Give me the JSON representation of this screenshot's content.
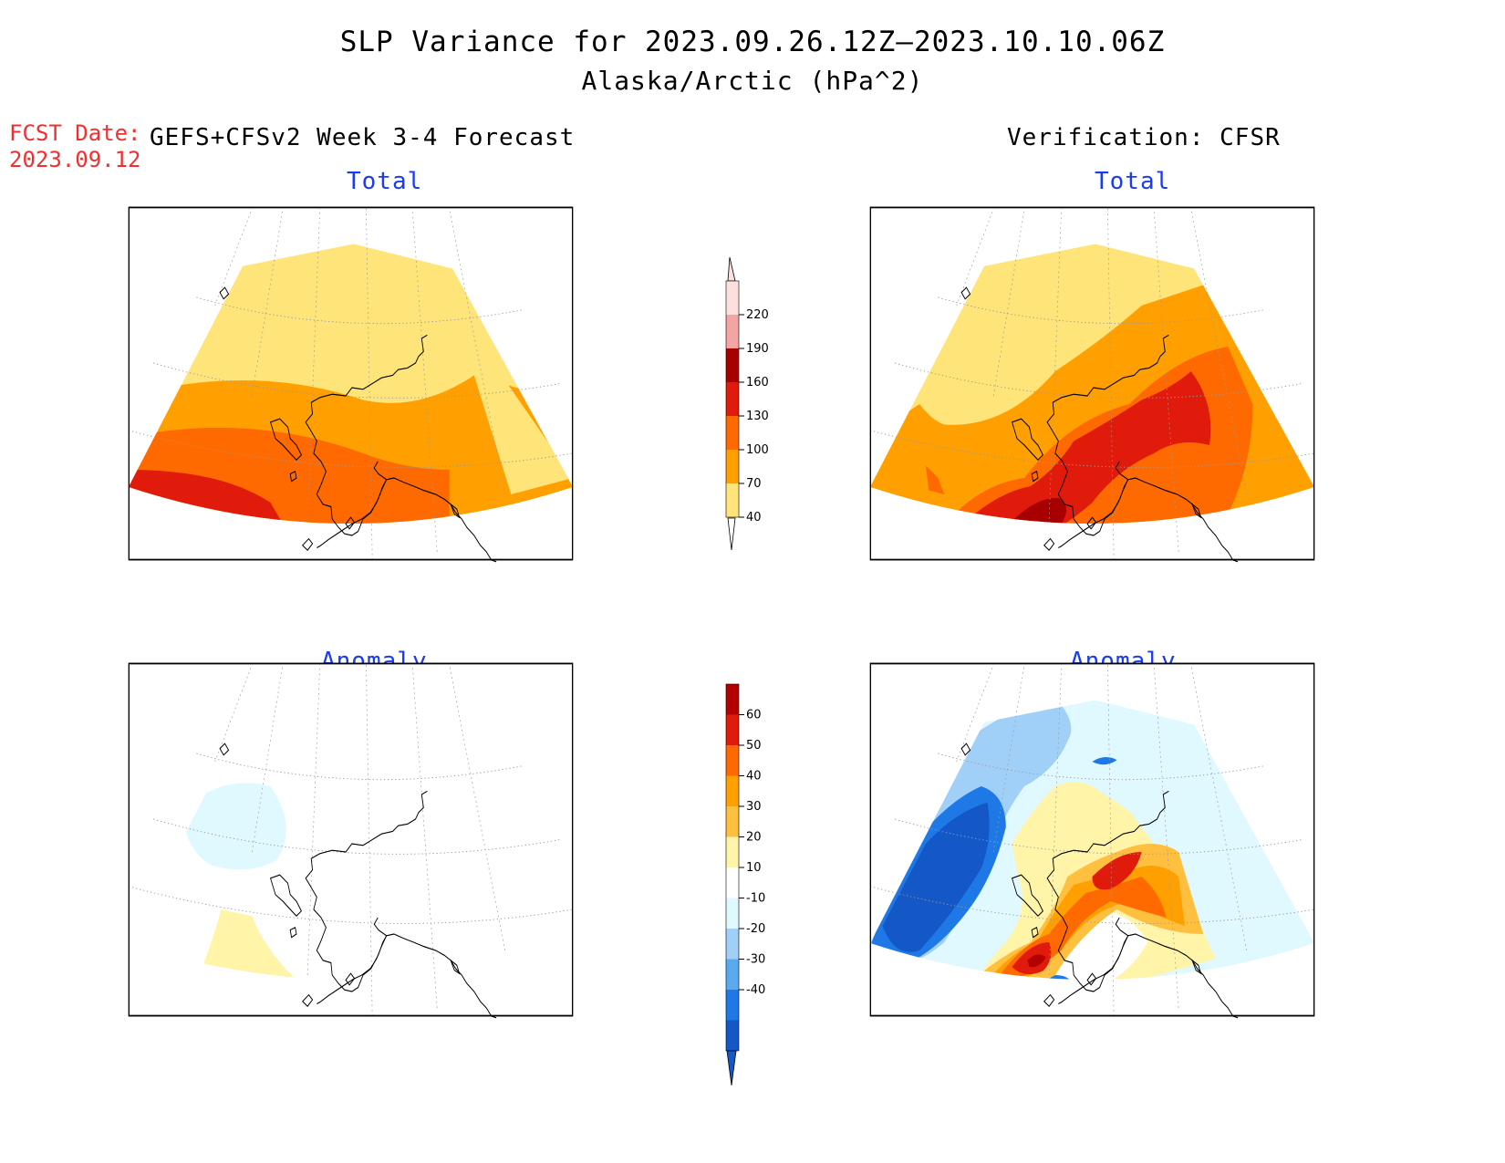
{
  "title": {
    "line1": "SLP Variance for 2023.09.26.12Z–2023.10.10.06Z",
    "line2": "Alaska/Arctic (hPa^2)"
  },
  "forecast_date": {
    "label": "FCST Date:",
    "value": "2023.09.12"
  },
  "columns": {
    "left": "GEFS+CFSv2 Week 3-4 Forecast",
    "right": "Verification: CFSR"
  },
  "panels": {
    "top_left": "Total",
    "top_right": "Total",
    "bottom_left": "Anomaly",
    "bottom_right": "Anomaly"
  },
  "colorbars": {
    "total": {
      "labels": [
        "220",
        "190",
        "160",
        "130",
        "100",
        "70",
        "40"
      ],
      "colors": [
        "#fde0dc",
        "#f4a4a4",
        "#a80000",
        "#e01b0b",
        "#ff6a00",
        "#ffa000",
        "#ffe47a"
      ]
    },
    "anomaly": {
      "labels": [
        "60",
        "50",
        "40",
        "30",
        "20",
        "10",
        "-10",
        "-20",
        "-30",
        "-40"
      ],
      "colors": [
        "#b30000",
        "#e01b0b",
        "#ff6a00",
        "#ffa000",
        "#ffc040",
        "#fff4a8",
        "#ffffff",
        "#e0f8ff",
        "#a0d0f8",
        "#5aaaf0",
        "#1e78e6",
        "#1458c8"
      ]
    }
  },
  "palette": {
    "coast": "#000000",
    "grid": "#999999"
  }
}
